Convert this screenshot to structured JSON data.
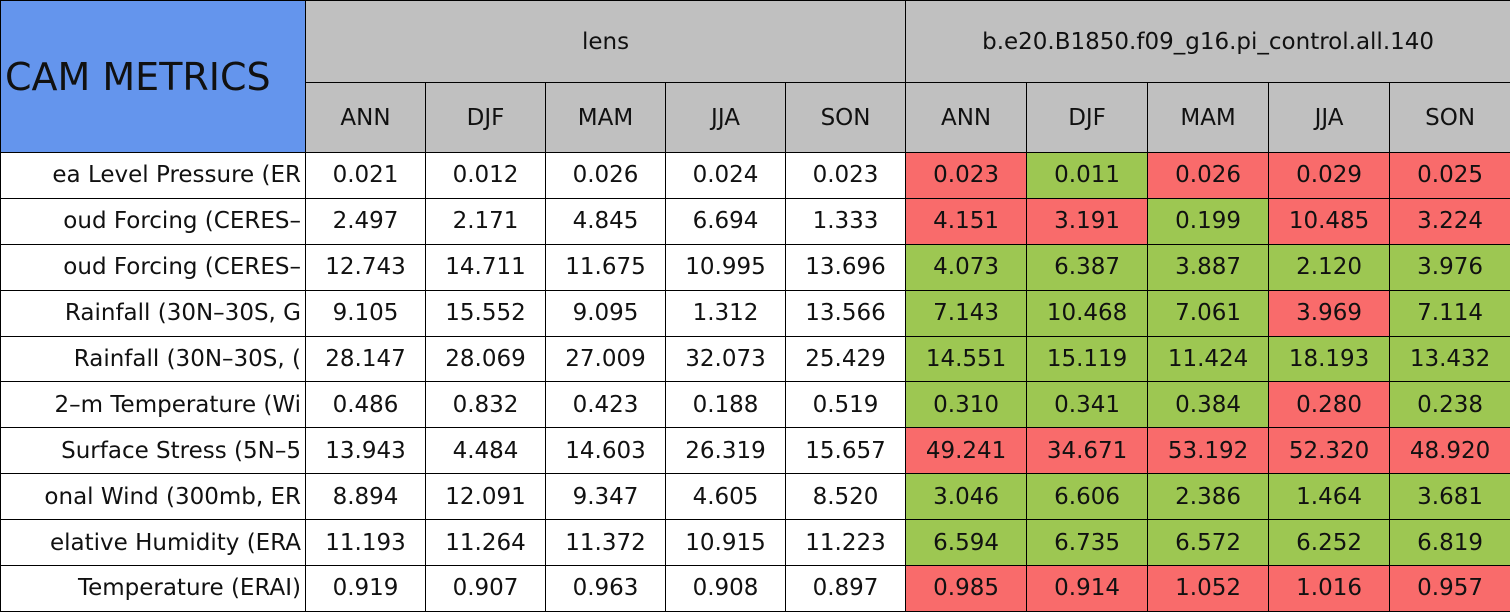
{
  "header": {
    "title": "CAM METRICS",
    "groups": [
      "lens",
      "b.e20.B1850.f09_g16.pi_control.all.140"
    ],
    "seasons": [
      "ANN",
      "DJF",
      "MAM",
      "JJA",
      "SON"
    ]
  },
  "colors": {
    "header": "#c0c0c0",
    "title": "#6495ed",
    "worse": "#f96b6b",
    "better": "#9dc752"
  },
  "rows": [
    {
      "label": "ea Level Pressure (ER",
      "lens": [
        "0.021",
        "0.012",
        "0.026",
        "0.024",
        "0.023"
      ],
      "control": [
        "0.023",
        "0.011",
        "0.026",
        "0.029",
        "0.025"
      ],
      "status": [
        "worse",
        "better",
        "worse",
        "worse",
        "worse"
      ]
    },
    {
      "label": "oud Forcing (CERES–",
      "lens": [
        "2.497",
        "2.171",
        "4.845",
        "6.694",
        "1.333"
      ],
      "control": [
        "4.151",
        "3.191",
        "0.199",
        "10.485",
        "3.224"
      ],
      "status": [
        "worse",
        "worse",
        "better",
        "worse",
        "worse"
      ]
    },
    {
      "label": "oud Forcing (CERES–",
      "lens": [
        "12.743",
        "14.711",
        "11.675",
        "10.995",
        "13.696"
      ],
      "control": [
        "4.073",
        "6.387",
        "3.887",
        "2.120",
        "3.976"
      ],
      "status": [
        "better",
        "better",
        "better",
        "better",
        "better"
      ]
    },
    {
      "label": "Rainfall (30N–30S, G",
      "lens": [
        "9.105",
        "15.552",
        "9.095",
        "1.312",
        "13.566"
      ],
      "control": [
        "7.143",
        "10.468",
        "7.061",
        "3.969",
        "7.114"
      ],
      "status": [
        "better",
        "better",
        "better",
        "worse",
        "better"
      ]
    },
    {
      "label": "Rainfall (30N–30S, (",
      "lens": [
        "28.147",
        "28.069",
        "27.009",
        "32.073",
        "25.429"
      ],
      "control": [
        "14.551",
        "15.119",
        "11.424",
        "18.193",
        "13.432"
      ],
      "status": [
        "better",
        "better",
        "better",
        "better",
        "better"
      ]
    },
    {
      "label": "2–m Temperature (Wi",
      "lens": [
        "0.486",
        "0.832",
        "0.423",
        "0.188",
        "0.519"
      ],
      "control": [
        "0.310",
        "0.341",
        "0.384",
        "0.280",
        "0.238"
      ],
      "status": [
        "better",
        "better",
        "better",
        "worse",
        "better"
      ]
    },
    {
      "label": "Surface Stress (5N–5",
      "lens": [
        "13.943",
        "4.484",
        "14.603",
        "26.319",
        "15.657"
      ],
      "control": [
        "49.241",
        "34.671",
        "53.192",
        "52.320",
        "48.920"
      ],
      "status": [
        "worse",
        "worse",
        "worse",
        "worse",
        "worse"
      ]
    },
    {
      "label": "onal Wind (300mb, ER",
      "lens": [
        "8.894",
        "12.091",
        "9.347",
        "4.605",
        "8.520"
      ],
      "control": [
        "3.046",
        "6.606",
        "2.386",
        "1.464",
        "3.681"
      ],
      "status": [
        "better",
        "better",
        "better",
        "better",
        "better"
      ]
    },
    {
      "label": "elative Humidity (ERA",
      "lens": [
        "11.193",
        "11.264",
        "11.372",
        "10.915",
        "11.223"
      ],
      "control": [
        "6.594",
        "6.735",
        "6.572",
        "6.252",
        "6.819"
      ],
      "status": [
        "better",
        "better",
        "better",
        "better",
        "better"
      ]
    },
    {
      "label": "Temperature (ERAI)",
      "lens": [
        "0.919",
        "0.907",
        "0.963",
        "0.908",
        "0.897"
      ],
      "control": [
        "0.985",
        "0.914",
        "1.052",
        "1.016",
        "0.957"
      ],
      "status": [
        "worse",
        "worse",
        "worse",
        "worse",
        "worse"
      ]
    }
  ]
}
